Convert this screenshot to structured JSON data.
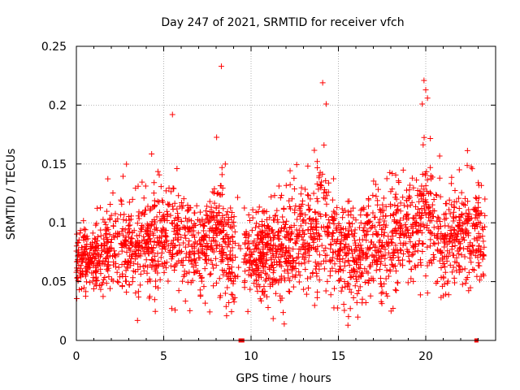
{
  "chart_data": {
    "type": "scatter",
    "title": "Day 247 of 2021, SRMTID for receiver vfch",
    "xlabel": "GPS time / hours",
    "ylabel": "SRMTID / TECUs",
    "xlim": [
      0,
      24
    ],
    "ylim": [
      0,
      0.25
    ],
    "xticks": [
      0,
      5,
      10,
      15,
      20
    ],
    "xtick_labels": [
      "0",
      "5",
      "10",
      "15",
      "20"
    ],
    "yticks": [
      0,
      0.05,
      0.1,
      0.15,
      0.2,
      0.25
    ],
    "ytick_labels": [
      "0",
      "0.05",
      "0.1",
      "0.15",
      "0.2",
      "0.25"
    ],
    "grid": true,
    "marker": "plus",
    "color": "#ff0000",
    "notable_points": [
      {
        "x": 8.3,
        "y": 0.233
      },
      {
        "x": 14.1,
        "y": 0.219
      },
      {
        "x": 19.9,
        "y": 0.221
      },
      {
        "x": 20.0,
        "y": 0.213
      },
      {
        "x": 20.1,
        "y": 0.206
      },
      {
        "x": 14.3,
        "y": 0.201
      },
      {
        "x": 19.8,
        "y": 0.201
      },
      {
        "x": 5.5,
        "y": 0.192
      },
      {
        "x": 8.6,
        "y": 0.021
      },
      {
        "x": 3.5,
        "y": 0.017
      },
      {
        "x": 11.9,
        "y": 0.014
      }
    ],
    "zero_markers": [
      {
        "x": 9.4,
        "y": 0
      },
      {
        "x": 9.5,
        "y": 0
      },
      {
        "x": 22.9,
        "y": 0
      }
    ],
    "profile": {
      "hours": [
        0,
        1,
        2,
        3,
        4,
        5,
        6,
        7,
        8,
        9,
        10,
        11,
        12,
        13,
        14,
        15,
        16,
        17,
        18,
        19,
        20,
        21,
        22,
        23,
        23.4
      ],
      "center": [
        0.065,
        0.068,
        0.078,
        0.082,
        0.08,
        0.085,
        0.085,
        0.075,
        0.09,
        0.075,
        0.07,
        0.075,
        0.08,
        0.09,
        0.1,
        0.08,
        0.07,
        0.085,
        0.085,
        0.095,
        0.105,
        0.085,
        0.09,
        0.09,
        0.08
      ],
      "spread": [
        0.02,
        0.02,
        0.025,
        0.028,
        0.028,
        0.03,
        0.03,
        0.025,
        0.035,
        0.03,
        0.025,
        0.028,
        0.03,
        0.03,
        0.035,
        0.03,
        0.025,
        0.03,
        0.03,
        0.032,
        0.035,
        0.03,
        0.028,
        0.03,
        0.025
      ],
      "points_per_hour": 110
    }
  }
}
